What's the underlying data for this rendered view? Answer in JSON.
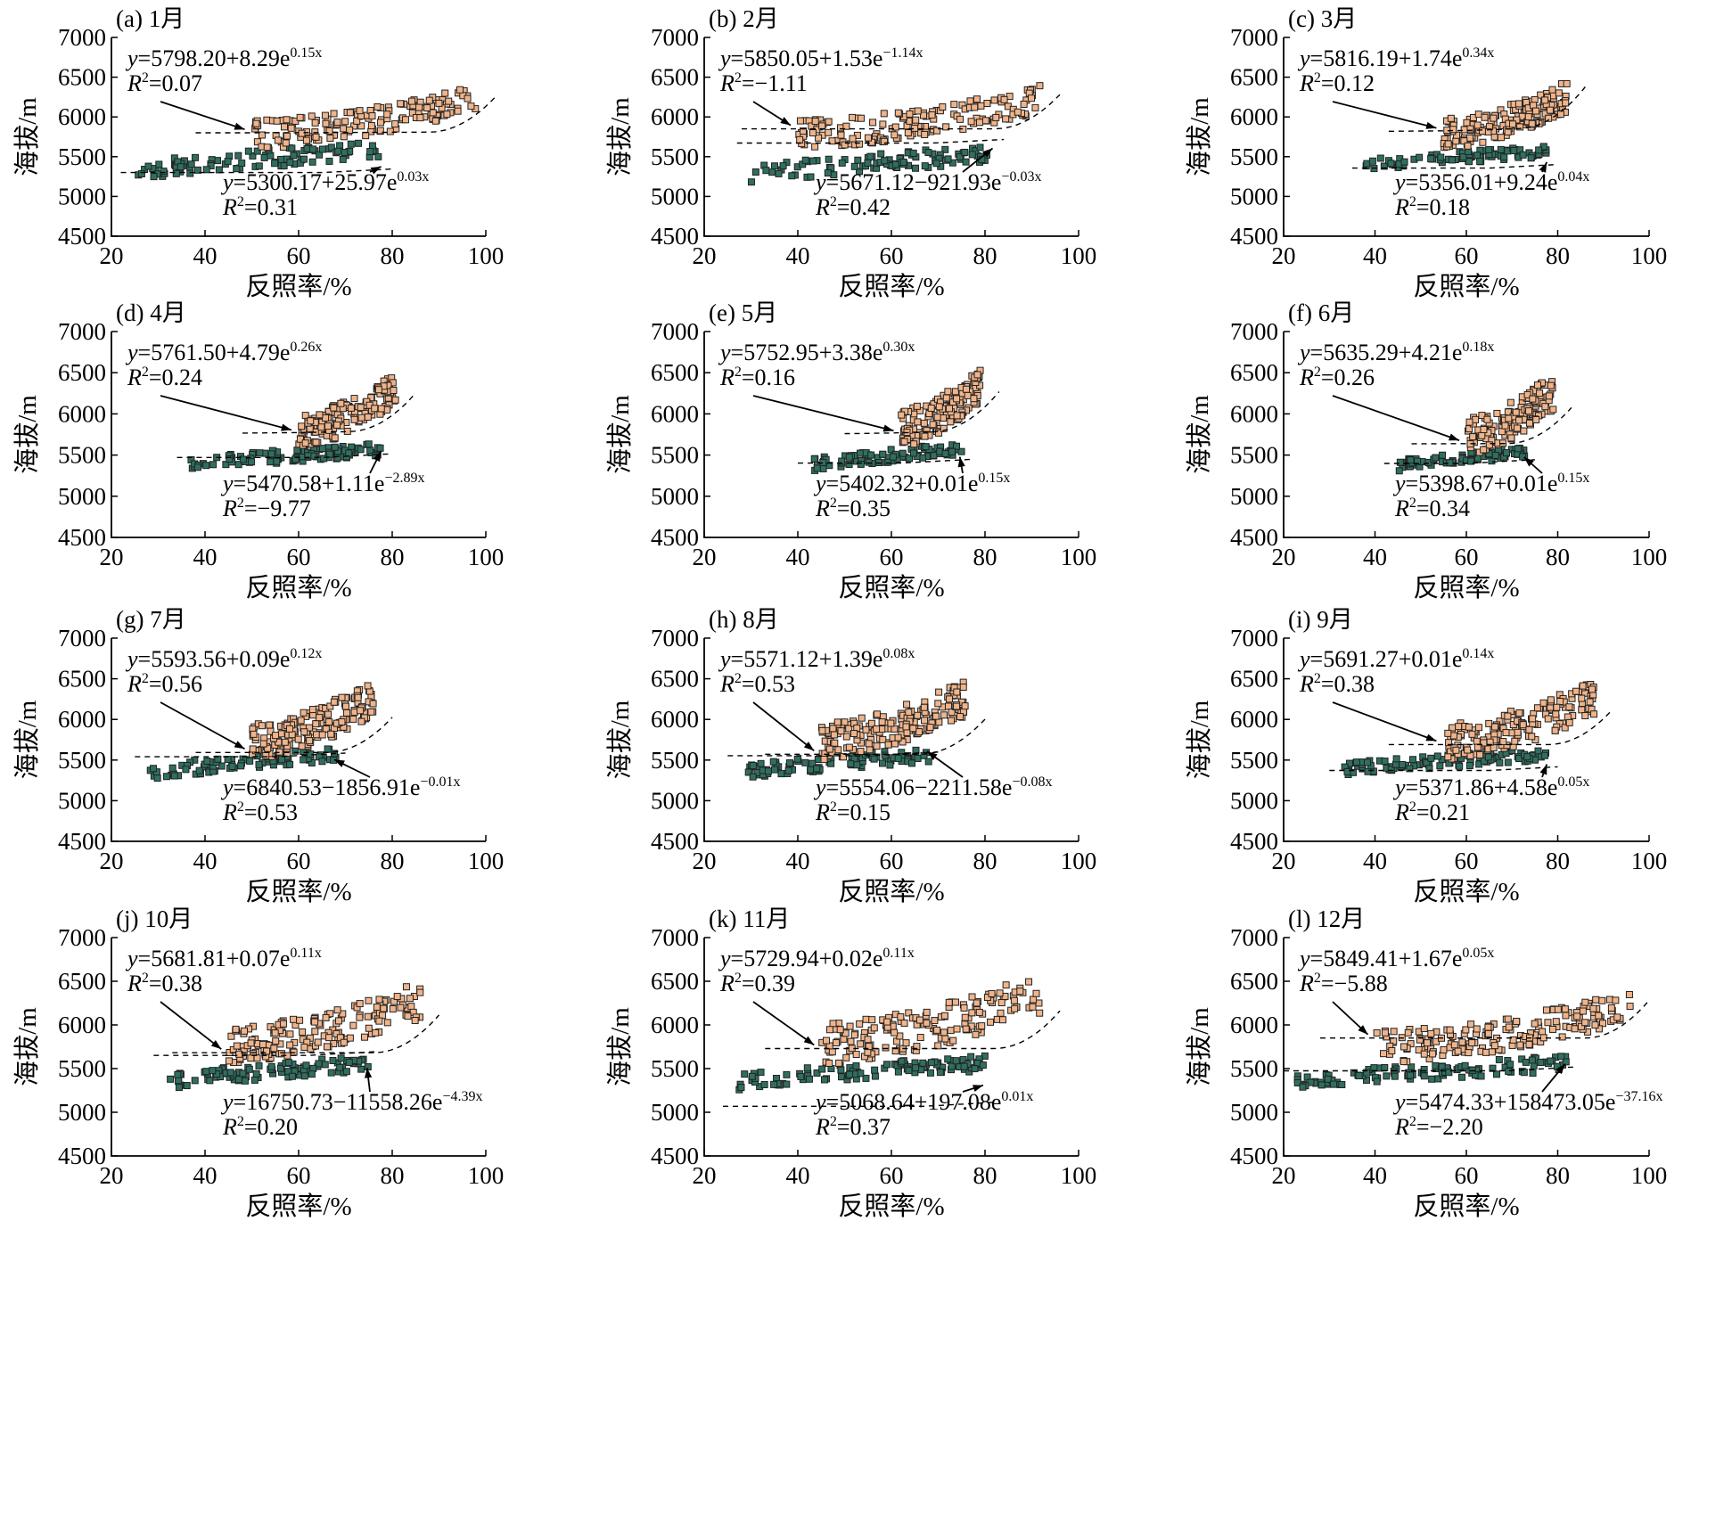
{
  "figure": {
    "xlabel": "反照率/%",
    "ylabel": "海拔/m",
    "colors": {
      "low": "#2f6f60",
      "high": "#f0b48a",
      "edge": "#222222"
    }
  },
  "chart_data": [
    {
      "type": "scatter",
      "label": "(a) 1月",
      "xlim": [
        20,
        100
      ],
      "ylim": [
        4500,
        7000
      ],
      "x_ticks": [
        20,
        40,
        60,
        80,
        100
      ],
      "y_ticks": [
        4500,
        5000,
        5500,
        6000,
        6500,
        7000
      ],
      "upper": {
        "a": 5798.2,
        "sign": "+",
        "b": "8.29",
        "k": "0.15",
        "r2": "0.07",
        "eq_text": "=5798.20+8.29e",
        "exp_text": "0.15x",
        "r2_text": "=0.07"
      },
      "lower": {
        "a": 5300.17,
        "sign": "+",
        "b": "25.97",
        "k": "0.03",
        "r2": "0.31",
        "eq_text": "=5300.17+25.97e",
        "exp_text": "0.03x",
        "r2_text": "=0.31"
      },
      "low_cloud": {
        "x": [
          25,
          78
        ],
        "y": [
          5200,
          5700
        ],
        "n": 95
      },
      "high_cloud": {
        "x": [
          50,
          98
        ],
        "y": [
          5600,
          6400
        ],
        "n": 150
      }
    },
    {
      "type": "scatter",
      "label": "(b) 2月",
      "xlim": [
        20,
        100
      ],
      "ylim": [
        4500,
        7000
      ],
      "x_ticks": [
        20,
        40,
        60,
        80,
        100
      ],
      "y_ticks": [
        4500,
        5000,
        5500,
        6000,
        6500,
        7000
      ],
      "upper": {
        "a": 5850.05,
        "sign": "+",
        "b": "1.53",
        "k": "-1.14",
        "r2": "-1.11",
        "eq_text": "=5850.05+1.53e",
        "exp_text": "−1.14x",
        "r2_text": "=−1.11"
      },
      "lower": {
        "a": 5671.12,
        "sign": "−",
        "b": "921.93",
        "k": "-0.03",
        "r2": "0.42",
        "eq_text": "=5671.12−921.93e",
        "exp_text": "−0.03x",
        "r2_text": "=0.42"
      },
      "low_cloud": {
        "x": [
          30,
          82
        ],
        "y": [
          5150,
          5650
        ],
        "n": 95
      },
      "high_cloud": {
        "x": [
          40,
          92
        ],
        "y": [
          5600,
          6400
        ],
        "n": 150
      }
    },
    {
      "type": "scatter",
      "label": "(c) 3月",
      "xlim": [
        20,
        100
      ],
      "ylim": [
        4500,
        7000
      ],
      "x_ticks": [
        20,
        40,
        60,
        80,
        100
      ],
      "y_ticks": [
        4500,
        5000,
        5500,
        6000,
        6500,
        7000
      ],
      "upper": {
        "a": 5816.19,
        "sign": "+",
        "b": "1.74",
        "k": "0.34",
        "r2": "0.12",
        "eq_text": "=5816.19+1.74e",
        "exp_text": "0.34x",
        "r2_text": "=0.12"
      },
      "lower": {
        "a": 5356.01,
        "sign": "+",
        "b": "9.24",
        "k": "0.04",
        "r2": "0.18",
        "eq_text": "=5356.01+9.24e",
        "exp_text": "0.04x",
        "r2_text": "=0.18"
      },
      "low_cloud": {
        "x": [
          38,
          78
        ],
        "y": [
          5300,
          5650
        ],
        "n": 85
      },
      "high_cloud": {
        "x": [
          55,
          82
        ],
        "y": [
          5600,
          6450
        ],
        "n": 170
      }
    },
    {
      "type": "scatter",
      "label": "(d) 4月",
      "xlim": [
        20,
        100
      ],
      "ylim": [
        4500,
        7000
      ],
      "x_ticks": [
        20,
        40,
        60,
        80,
        100
      ],
      "y_ticks": [
        4500,
        5000,
        5500,
        6000,
        6500,
        7000
      ],
      "upper": {
        "a": 5761.5,
        "sign": "+",
        "b": "4.79",
        "k": "0.26",
        "r2": "0.24",
        "eq_text": "=5761.50+4.79e",
        "exp_text": "0.26x",
        "r2_text": "=0.24"
      },
      "lower": {
        "a": 5470.58,
        "sign": "+",
        "b": "1.11",
        "k": "-2.89",
        "r2": "-9.77",
        "eq_text": "=5470.58+1.11e",
        "exp_text": "−2.89x",
        "r2_text": "=−9.77"
      },
      "low_cloud": {
        "x": [
          37,
          78
        ],
        "y": [
          5300,
          5650
        ],
        "n": 100
      },
      "high_cloud": {
        "x": [
          60,
          81
        ],
        "y": [
          5600,
          6500
        ],
        "n": 150
      }
    },
    {
      "type": "scatter",
      "label": "(e) 5月",
      "xlim": [
        20,
        100
      ],
      "ylim": [
        4500,
        7000
      ],
      "x_ticks": [
        20,
        40,
        60,
        80,
        100
      ],
      "y_ticks": [
        4500,
        5000,
        5500,
        6000,
        6500,
        7000
      ],
      "upper": {
        "a": 5752.95,
        "sign": "+",
        "b": "3.38",
        "k": "0.30",
        "r2": "0.16",
        "eq_text": "=5752.95+3.38e",
        "exp_text": "0.30x",
        "r2_text": "=0.16"
      },
      "lower": {
        "a": 5402.32,
        "sign": "+",
        "b": "0.01",
        "k": "0.15",
        "r2": "0.35",
        "eq_text": "=5402.32+0.01e",
        "exp_text": "0.15x",
        "r2_text": "=0.35"
      },
      "low_cloud": {
        "x": [
          43,
          75
        ],
        "y": [
          5300,
          5650
        ],
        "n": 85
      },
      "high_cloud": {
        "x": [
          62,
          79
        ],
        "y": [
          5600,
          6600
        ],
        "n": 150
      }
    },
    {
      "type": "scatter",
      "label": "(f) 6月",
      "xlim": [
        20,
        100
      ],
      "ylim": [
        4500,
        7000
      ],
      "x_ticks": [
        20,
        40,
        60,
        80,
        100
      ],
      "y_ticks": [
        4500,
        5000,
        5500,
        6000,
        6500,
        7000
      ],
      "upper": {
        "a": 5635.29,
        "sign": "+",
        "b": "4.21",
        "k": "0.18",
        "r2": "0.26",
        "eq_text": "=5635.29+4.21e",
        "exp_text": "0.18x",
        "r2_text": "=0.26"
      },
      "lower": {
        "a": 5398.67,
        "sign": "+",
        "b": "0.01",
        "k": "0.15",
        "r2": "0.34",
        "eq_text": "=5398.67+0.01e",
        "exp_text": "0.15x",
        "r2_text": "=0.34"
      },
      "low_cloud": {
        "x": [
          45,
          73
        ],
        "y": [
          5300,
          5600
        ],
        "n": 80
      },
      "high_cloud": {
        "x": [
          60,
          79
        ],
        "y": [
          5500,
          6500
        ],
        "n": 150
      }
    },
    {
      "type": "scatter",
      "label": "(g) 7月",
      "xlim": [
        20,
        100
      ],
      "ylim": [
        4500,
        7000
      ],
      "x_ticks": [
        20,
        40,
        60,
        80,
        100
      ],
      "y_ticks": [
        4500,
        5000,
        5500,
        6000,
        6500,
        7000
      ],
      "upper": {
        "a": 5593.56,
        "sign": "+",
        "b": "0.09",
        "k": "0.12",
        "r2": "0.56",
        "eq_text": "=5593.56+0.09e",
        "exp_text": "0.12x",
        "r2_text": "=0.56"
      },
      "lower": {
        "a": 6840.53,
        "sign": "−",
        "b": "1856.91",
        "k": "-0.01",
        "r2": "0.53",
        "eq_text": "=6840.53−1856.91e",
        "exp_text": "−0.01x",
        "r2_text": "=0.53"
      },
      "low_cloud": {
        "x": [
          28,
          68
        ],
        "y": [
          5250,
          5650
        ],
        "n": 90
      },
      "high_cloud": {
        "x": [
          50,
          76
        ],
        "y": [
          5500,
          6500
        ],
        "n": 170
      }
    },
    {
      "type": "scatter",
      "label": "(h) 8月",
      "xlim": [
        20,
        100
      ],
      "ylim": [
        4500,
        7000
      ],
      "x_ticks": [
        20,
        40,
        60,
        80,
        100
      ],
      "y_ticks": [
        4500,
        5000,
        5500,
        6000,
        6500,
        7000
      ],
      "upper": {
        "a": 5571.12,
        "sign": "+",
        "b": "1.39",
        "k": "0.08",
        "r2": "0.53",
        "eq_text": "=5571.12+1.39e",
        "exp_text": "0.08x",
        "r2_text": "=0.53"
      },
      "lower": {
        "a": 5554.06,
        "sign": "−",
        "b": "2211.58",
        "k": "-0.08",
        "r2": "0.15",
        "eq_text": "=5554.06−2211.58e",
        "exp_text": "−0.08x",
        "r2_text": "=0.15"
      },
      "low_cloud": {
        "x": [
          28,
          68
        ],
        "y": [
          5250,
          5650
        ],
        "n": 90
      },
      "high_cloud": {
        "x": [
          45,
          76
        ],
        "y": [
          5500,
          6500
        ],
        "n": 170
      }
    },
    {
      "type": "scatter",
      "label": "(i) 9月",
      "xlim": [
        20,
        100
      ],
      "ylim": [
        4500,
        7000
      ],
      "x_ticks": [
        20,
        40,
        60,
        80,
        100
      ],
      "y_ticks": [
        4500,
        5000,
        5500,
        6000,
        6500,
        7000
      ],
      "upper": {
        "a": 5691.27,
        "sign": "+",
        "b": "0.01",
        "k": "0.14",
        "r2": "0.38",
        "eq_text": "=5691.27+0.01e",
        "exp_text": "0.14x",
        "r2_text": "=0.38"
      },
      "lower": {
        "a": 5371.86,
        "sign": "+",
        "b": "4.58",
        "k": "0.05",
        "r2": "0.21",
        "eq_text": "=5371.86+4.58e",
        "exp_text": "0.05x",
        "r2_text": "=0.21"
      },
      "low_cloud": {
        "x": [
          33,
          78
        ],
        "y": [
          5300,
          5650
        ],
        "n": 100
      },
      "high_cloud": {
        "x": [
          55,
          88
        ],
        "y": [
          5500,
          6500
        ],
        "n": 160
      }
    },
    {
      "type": "scatter",
      "label": "(j) 10月",
      "xlim": [
        20,
        100
      ],
      "ylim": [
        4500,
        7000
      ],
      "x_ticks": [
        20,
        40,
        60,
        80,
        100
      ],
      "y_ticks": [
        4500,
        5000,
        5500,
        6000,
        6500,
        7000
      ],
      "upper": {
        "a": 5681.81,
        "sign": "+",
        "b": "0.07",
        "k": "0.11",
        "r2": "0.38",
        "eq_text": "=5681.81+0.07e",
        "exp_text": "0.11x",
        "r2_text": "=0.38"
      },
      "lower": {
        "a": 16750.73,
        "sign": "−",
        "b": "11558.26",
        "k": "-4.39",
        "r2": "0.20",
        "eq_text": "=16750.73−11558.26e",
        "exp_text": "−4.39x",
        "r2_text": "=0.20"
      },
      "low_cloud": {
        "x": [
          32,
          75
        ],
        "y": [
          5250,
          5650
        ],
        "n": 100
      },
      "high_cloud": {
        "x": [
          45,
          86
        ],
        "y": [
          5550,
          6500
        ],
        "n": 160
      }
    },
    {
      "type": "scatter",
      "label": "(k) 11月",
      "xlim": [
        20,
        100
      ],
      "ylim": [
        4500,
        7000
      ],
      "x_ticks": [
        20,
        40,
        60,
        80,
        100
      ],
      "y_ticks": [
        4500,
        5000,
        5500,
        6000,
        6500,
        7000
      ],
      "upper": {
        "a": 5729.94,
        "sign": "+",
        "b": "0.02",
        "k": "0.11",
        "r2": "0.39",
        "eq_text": "=5729.94+0.02e",
        "exp_text": "0.11x",
        "r2_text": "=0.39"
      },
      "lower": {
        "a": 5068.64,
        "sign": "+",
        "b": "197.08",
        "k": "0.01",
        "r2": "0.37",
        "eq_text": "=5068.64+197.08e",
        "exp_text": "0.01x",
        "r2_text": "=0.37"
      },
      "low_cloud": {
        "x": [
          27,
          80
        ],
        "y": [
          5250,
          5650
        ],
        "n": 110
      },
      "high_cloud": {
        "x": [
          45,
          92
        ],
        "y": [
          5550,
          6600
        ],
        "n": 160
      }
    },
    {
      "type": "scatter",
      "label": "(l) 12月",
      "xlim": [
        20,
        100
      ],
      "ylim": [
        4500,
        7000
      ],
      "x_ticks": [
        20,
        40,
        60,
        80,
        100
      ],
      "y_ticks": [
        4500,
        5000,
        5500,
        6000,
        6500,
        7000
      ],
      "upper": {
        "a": 5849.41,
        "sign": "+",
        "b": "1.67",
        "k": "0.05",
        "r2": "-5.88",
        "eq_text": "=5849.41+1.67e",
        "exp_text": "0.05x",
        "r2_text": "=−5.88"
      },
      "lower": {
        "a": 5474.33,
        "sign": "+",
        "b": "158473.05",
        "k": "-37.16",
        "r2": "-2.20",
        "eq_text": "=5474.33+158473.05e",
        "exp_text": "−37.16x",
        "r2_text": "=−2.20"
      },
      "low_cloud": {
        "x": [
          23,
          82
        ],
        "y": [
          5250,
          5650
        ],
        "n": 110
      },
      "high_cloud": {
        "x": [
          40,
          96
        ],
        "y": [
          5550,
          6400
        ],
        "n": 170
      }
    }
  ]
}
